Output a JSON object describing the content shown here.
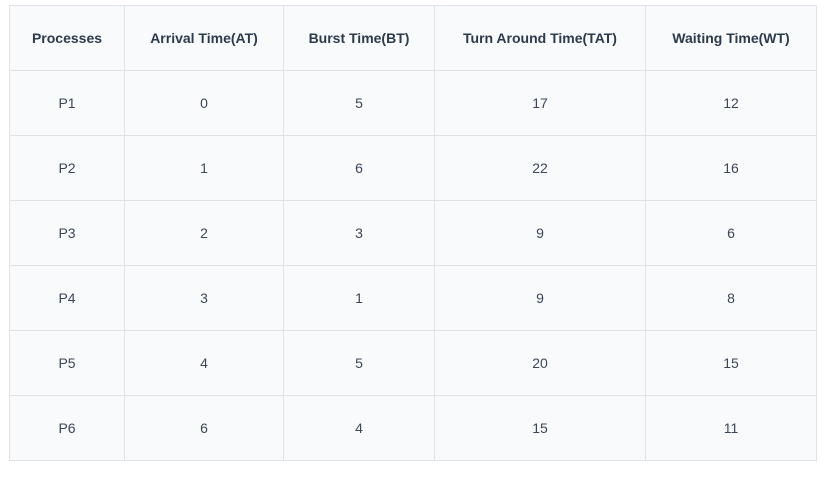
{
  "table": {
    "headers": [
      "Processes",
      "Arrival Time(AT)",
      "Burst Time(BT)",
      "Turn Around Time(TAT)",
      "Waiting Time(WT)"
    ],
    "rows": [
      [
        "P1",
        "0",
        "5",
        "17",
        "12"
      ],
      [
        "P2",
        "1",
        "6",
        "22",
        "16"
      ],
      [
        "P3",
        "2",
        "3",
        "9",
        "6"
      ],
      [
        "P4",
        "3",
        "1",
        "9",
        "8"
      ],
      [
        "P5",
        "4",
        "5",
        "20",
        "15"
      ],
      [
        "P6",
        "6",
        "4",
        "15",
        "11"
      ]
    ]
  },
  "colors": {
    "table_background": "#f9fafc",
    "border": "#dfe2e7",
    "header_text": "#2c3a4b",
    "cell_text": "#3b4757"
  }
}
